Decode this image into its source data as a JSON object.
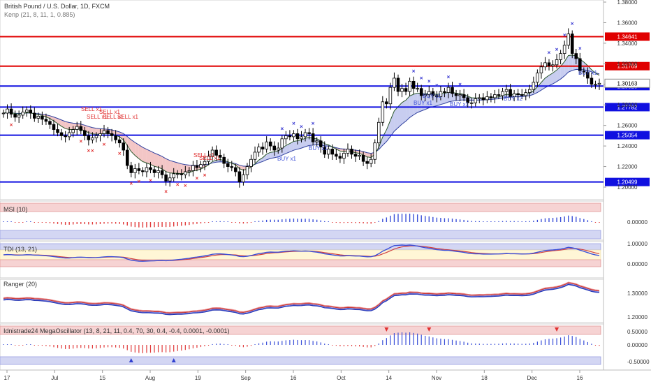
{
  "header": {
    "symbol_title": "British Pound / U.S. Dollar, 1D, FXCM",
    "indicator_line": "Kenp (21, 8, 11, 1, 0.885)"
  },
  "colors": {
    "candle_up": "#ffffff",
    "candle_down": "#000000",
    "resistance_line": "#e00000",
    "support_line": "#1010e0",
    "buy_marker": "#3030d0",
    "sell_marker": "#e03030",
    "ribbon_bull_fill": "#c8cdf0",
    "ribbon_bear_fill": "#f3c6c6",
    "panel_upper_band": "#f6d3d3",
    "panel_lower_band": "#d3d6f3",
    "tdi_mid_band": "#fff6d6"
  },
  "chart_data": [
    {
      "type": "candlestick",
      "title": "British Pound / U.S. Dollar, 1D, FXCM",
      "y_axis_ticks": [
        1.38,
        1.36,
        1.34,
        1.32,
        1.3,
        1.28,
        1.26,
        1.24,
        1.22,
        1.2
      ],
      "y_tick_labels": [
        "1.38000",
        "1.36000",
        "1.34000",
        "1.32000",
        "1.30000",
        "1.28000",
        "1.26000",
        "1.24000",
        "1.22000",
        "1.20000"
      ],
      "ylim": [
        1.195,
        1.381
      ],
      "x_tick_labels": [
        "17",
        "Jul",
        "15",
        "Aug",
        "19",
        "Sep",
        "16",
        "Oct",
        "14",
        "Nov",
        "18",
        "Dec",
        "16"
      ],
      "current_price": "1.30163",
      "horizontal_levels": [
        {
          "value": 1.34641,
          "label": "1.34641",
          "kind": "resistance"
        },
        {
          "value": 1.31769,
          "label": "1.31769",
          "kind": "resistance"
        },
        {
          "value": 1.29828,
          "label": "1.29828",
          "kind": "support"
        },
        {
          "value": 1.27782,
          "label": "1.27782",
          "kind": "support"
        },
        {
          "value": 1.25054,
          "label": "1.25054",
          "kind": "support"
        },
        {
          "value": 1.20499,
          "label": "1.20499",
          "kind": "support"
        }
      ],
      "annotations": [
        {
          "text": "SELL x1",
          "kind": "sell"
        },
        {
          "text": "SELL x1",
          "kind": "sell"
        },
        {
          "text": "SELL x1",
          "kind": "sell"
        },
        {
          "text": "SELL x1",
          "kind": "sell"
        },
        {
          "text": "SELL x1",
          "kind": "sell"
        },
        {
          "text": "SELL x1",
          "kind": "sell"
        },
        {
          "text": "SELL x1",
          "kind": "sell"
        },
        {
          "text": "BUY x1",
          "kind": "buy"
        },
        {
          "text": "BUY x1",
          "kind": "buy"
        },
        {
          "text": "BUY x1",
          "kind": "buy"
        },
        {
          "text": "BUY x1",
          "kind": "buy"
        },
        {
          "text": "BUY x1",
          "kind": "buy"
        },
        {
          "text": "BUY x2",
          "kind": "buy"
        },
        {
          "text": "BUY x1",
          "kind": "buy"
        }
      ],
      "closes": [
        1.272,
        1.276,
        1.271,
        1.268,
        1.27,
        1.273,
        1.275,
        1.272,
        1.267,
        1.269,
        1.266,
        1.264,
        1.261,
        1.256,
        1.253,
        1.25,
        1.249,
        1.253,
        1.256,
        1.259,
        1.255,
        1.25,
        1.246,
        1.248,
        1.25,
        1.252,
        1.255,
        1.252,
        1.25,
        1.246,
        1.243,
        1.236,
        1.221,
        1.214,
        1.218,
        1.216,
        1.215,
        1.219,
        1.217,
        1.214,
        1.216,
        1.212,
        1.206,
        1.209,
        1.213,
        1.213,
        1.212,
        1.215,
        1.216,
        1.221,
        1.219,
        1.222,
        1.225,
        1.23,
        1.236,
        1.231,
        1.229,
        1.223,
        1.22,
        1.219,
        1.215,
        1.205,
        1.212,
        1.22,
        1.227,
        1.234,
        1.239,
        1.237,
        1.244,
        1.24,
        1.236,
        1.238,
        1.247,
        1.25,
        1.249,
        1.252,
        1.247,
        1.249,
        1.253,
        1.252,
        1.244,
        1.245,
        1.239,
        1.232,
        1.237,
        1.232,
        1.23,
        1.228,
        1.233,
        1.237,
        1.232,
        1.23,
        1.231,
        1.225,
        1.223,
        1.227,
        1.243,
        1.263,
        1.283,
        1.281,
        1.297,
        1.306,
        1.293,
        1.296,
        1.293,
        1.303,
        1.296,
        1.296,
        1.289,
        1.29,
        1.293,
        1.289,
        1.288,
        1.293,
        1.292,
        1.297,
        1.291,
        1.289,
        1.29,
        1.287,
        1.282,
        1.282,
        1.286,
        1.287,
        1.285,
        1.288,
        1.287,
        1.29,
        1.289,
        1.293,
        1.295,
        1.288,
        1.291,
        1.29,
        1.289,
        1.292,
        1.295,
        1.302,
        1.311,
        1.317,
        1.321,
        1.318,
        1.319,
        1.324,
        1.33,
        1.338,
        1.349,
        1.33,
        1.325,
        1.313,
        1.312,
        1.306,
        1.3,
        1.3,
        1.301
      ]
    },
    {
      "type": "bar",
      "title": "MSI (10)",
      "y_tick_labels": [
        "0.00000"
      ]
    },
    {
      "type": "line",
      "title": "TDI (13, 21)",
      "y_tick_labels": [
        "1.00000",
        "0.00000"
      ]
    },
    {
      "type": "line",
      "title": "Ranger (20)",
      "y_tick_labels": [
        "1.30000",
        "1.20000"
      ]
    },
    {
      "type": "bar",
      "title": "Idnistrade24 MegaOscillator (13, 8, 21, 11, 0.4, 70, 30, 0.4, -0.4, 0.0001, -0.0001)",
      "y_tick_labels": [
        "0.50000",
        "0.00000",
        "-0.50000"
      ]
    }
  ]
}
